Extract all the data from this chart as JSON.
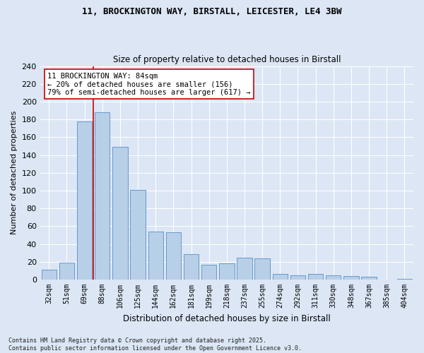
{
  "title1": "11, BROCKINGTON WAY, BIRSTALL, LEICESTER, LE4 3BW",
  "title2": "Size of property relative to detached houses in Birstall",
  "xlabel": "Distribution of detached houses by size in Birstall",
  "ylabel": "Number of detached properties",
  "categories": [
    "32sqm",
    "51sqm",
    "69sqm",
    "88sqm",
    "106sqm",
    "125sqm",
    "144sqm",
    "162sqm",
    "181sqm",
    "199sqm",
    "218sqm",
    "237sqm",
    "255sqm",
    "274sqm",
    "292sqm",
    "311sqm",
    "330sqm",
    "348sqm",
    "367sqm",
    "385sqm",
    "404sqm"
  ],
  "values": [
    11,
    19,
    178,
    188,
    149,
    101,
    54,
    53,
    29,
    17,
    18,
    25,
    24,
    6,
    5,
    6,
    5,
    4,
    3,
    0,
    1
  ],
  "bar_color": "#b8cfe8",
  "bar_edge_color": "#6699cc",
  "vline_color": "#cc0000",
  "annotation_text": "11 BROCKINGTON WAY: 84sqm\n← 20% of detached houses are smaller (156)\n79% of semi-detached houses are larger (617) →",
  "annotation_box_color": "#ffffff",
  "annotation_box_edge": "#cc0000",
  "ylim": [
    0,
    240
  ],
  "yticks": [
    0,
    20,
    40,
    60,
    80,
    100,
    120,
    140,
    160,
    180,
    200,
    220,
    240
  ],
  "bg_color": "#dce6f5",
  "grid_color": "#ffffff",
  "footer": "Contains HM Land Registry data © Crown copyright and database right 2025.\nContains public sector information licensed under the Open Government Licence v3.0."
}
